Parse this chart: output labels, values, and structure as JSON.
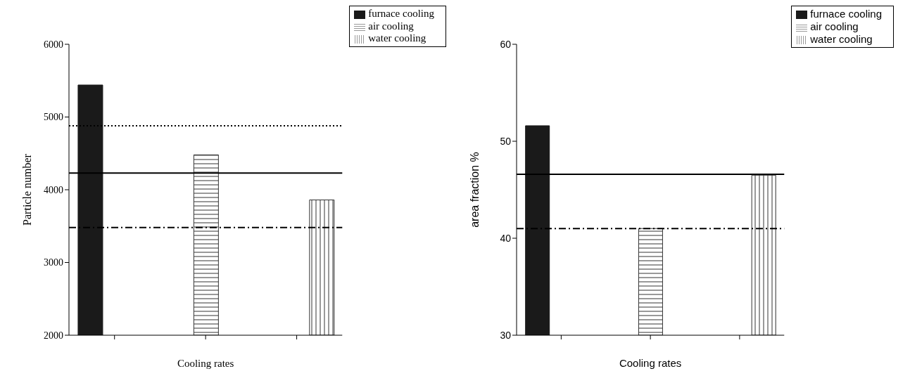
{
  "chart_data": [
    {
      "type": "bar",
      "xlabel": "Cooling rates",
      "ylabel": "Particle number",
      "categories": [
        null,
        null,
        null
      ],
      "series": [
        {
          "name": "furnace cooling",
          "color": "#1a1a1a",
          "values": [
            5440,
            null,
            null
          ]
        },
        {
          "name": "air cooling",
          "color": "#333333",
          "values": [
            null,
            4480,
            null
          ]
        },
        {
          "name": "water cooling",
          "color": "#333333",
          "values": [
            null,
            null,
            3860
          ]
        }
      ],
      "ylim": [
        2000,
        6000
      ],
      "yticks": [
        2000,
        3000,
        4000,
        5000,
        6000
      ],
      "tick_labels": "y",
      "grid": false,
      "legend": "top right",
      "ref_lines": [
        {
          "axis": "y",
          "value": 4880,
          "line_style": "dotted",
          "color": "#000000"
        },
        {
          "axis": "y",
          "value": 4230,
          "line_style": "solid",
          "color": "#000000"
        },
        {
          "axis": "y",
          "value": 3480,
          "line_style": "dashdot",
          "color": "#000000"
        }
      ]
    },
    {
      "type": "bar",
      "xlabel": "Cooling rates",
      "ylabel": "area fraction %",
      "categories": [
        null,
        null,
        null
      ],
      "series": [
        {
          "name": "furnace cooling",
          "color": "#1a1a1a",
          "values": [
            51.6,
            null,
            null
          ]
        },
        {
          "name": "air cooling",
          "color": "#333333",
          "values": [
            null,
            41.0,
            null
          ]
        },
        {
          "name": "water cooling",
          "color": "#333333",
          "values": [
            null,
            null,
            46.5
          ]
        }
      ],
      "ylim": [
        30,
        60
      ],
      "yticks": [
        30,
        40,
        50,
        60
      ],
      "tick_labels": "y",
      "grid": false,
      "legend": "top right",
      "ref_lines": [
        {
          "axis": "y",
          "value": 46.6,
          "line_style": "solid",
          "color": "#000000"
        },
        {
          "axis": "y",
          "value": 41.0,
          "line_style": "dashdot",
          "color": "#000000"
        }
      ]
    }
  ]
}
